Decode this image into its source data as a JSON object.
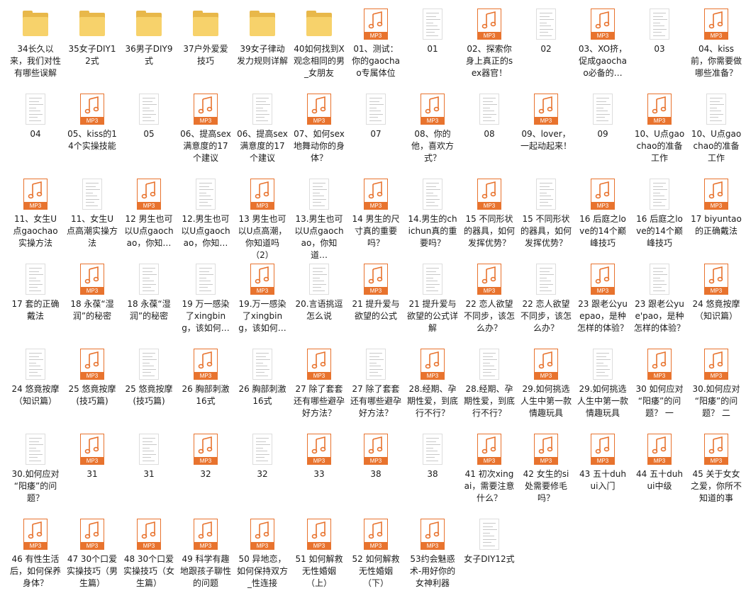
{
  "icon_label": "MP3",
  "items": [
    {
      "type": "folder",
      "label": "34长久以来，我们对性有哪些误解"
    },
    {
      "type": "folder",
      "label": "35女子DIY12式"
    },
    {
      "type": "folder",
      "label": "36男子DIY9式"
    },
    {
      "type": "folder",
      "label": "37户外爱爱技巧"
    },
    {
      "type": "folder",
      "label": "39女子律动发力规则详解"
    },
    {
      "type": "folder",
      "label": "40如何找到X观念相同的男_女朋友"
    },
    {
      "type": "mp3",
      "label": "01、测试：你的gaochao专属体位"
    },
    {
      "type": "doc",
      "label": "01"
    },
    {
      "type": "mp3",
      "label": "02、探索你身上真正的sex器官！"
    },
    {
      "type": "doc",
      "label": "02"
    },
    {
      "type": "mp3",
      "label": "03、XO挤，促成gaochao必备的…"
    },
    {
      "type": "doc",
      "label": "03"
    },
    {
      "type": "mp3",
      "label": "04、kiss前，你需要做哪些准备？"
    },
    {
      "type": "doc",
      "label": "04"
    },
    {
      "type": "mp3",
      "label": "05、kiss的14个实操技能"
    },
    {
      "type": "doc",
      "label": "05"
    },
    {
      "type": "mp3",
      "label": "06、提高sex满意度的17个建议"
    },
    {
      "type": "doc",
      "label": "06、提高sex满意度的17个建议"
    },
    {
      "type": "mp3",
      "label": "07、如何sex地舞动你的身体？"
    },
    {
      "type": "doc",
      "label": "07"
    },
    {
      "type": "mp3",
      "label": "08、你的他，喜欢方式？"
    },
    {
      "type": "doc",
      "label": "08"
    },
    {
      "type": "mp3",
      "label": "09、lover，一起动起来！"
    },
    {
      "type": "doc",
      "label": "09"
    },
    {
      "type": "mp3",
      "label": "10、U点gaochao的准备工作"
    },
    {
      "type": "doc",
      "label": "10、U点gaochao的准备工作"
    },
    {
      "type": "mp3",
      "label": "11、女生U点gaochao实操方法"
    },
    {
      "type": "doc",
      "label": "11、女生U点高潮实操方法"
    },
    {
      "type": "mp3",
      "label": "12 男生也可以U点gaochao，你知…"
    },
    {
      "type": "doc",
      "label": "12.男生也可以U点gaochao，你知…"
    },
    {
      "type": "mp3",
      "label": "13 男生也可以U点高潮，你知道吗（2）"
    },
    {
      "type": "doc",
      "label": "13.男生也可以U点gaochao，你知道…"
    },
    {
      "type": "mp3",
      "label": "14 男生的尺寸真的重要吗？"
    },
    {
      "type": "doc",
      "label": "14.男生的chichun真的重要吗？"
    },
    {
      "type": "mp3",
      "label": "15 不同形状的器具，如何发挥优势？"
    },
    {
      "type": "doc",
      "label": "15 不同形状的器具，如何发挥优势？"
    },
    {
      "type": "mp3",
      "label": "16 后庭之love的14个巅峰技巧"
    },
    {
      "type": "doc",
      "label": "16 后庭之love的14个巅峰技巧"
    },
    {
      "type": "mp3",
      "label": "17 biyuntao的正确戴法"
    },
    {
      "type": "doc",
      "label": "17 套的正确戴法"
    },
    {
      "type": "mp3",
      "label": "18 永葆“湿润”的秘密"
    },
    {
      "type": "doc",
      "label": "18 永葆“湿润”的秘密"
    },
    {
      "type": "doc",
      "label": "19 万一感染了xingbing，该如何…"
    },
    {
      "type": "mp3",
      "label": "19.万一感染了xingbing，该如何…"
    },
    {
      "type": "doc",
      "label": "20.言语挑逗怎么说"
    },
    {
      "type": "mp3",
      "label": "21 提升爱与欲望的公式"
    },
    {
      "type": "doc",
      "label": "21 提升爱与欲望的公式详解"
    },
    {
      "type": "mp3",
      "label": "22 恋人欲望不同步，该怎么办？"
    },
    {
      "type": "doc",
      "label": "22 恋人欲望不同步，该怎么办？"
    },
    {
      "type": "mp3",
      "label": "23 跟老公yuepao，是种怎样的体验？"
    },
    {
      "type": "doc",
      "label": "23 跟老公yue'pao，是种怎样的体验？"
    },
    {
      "type": "mp3",
      "label": "24 悠竟按摩（知识篇）"
    },
    {
      "type": "doc",
      "label": "24 悠竟按摩（知识篇）"
    },
    {
      "type": "mp3",
      "label": "25 悠竟按摩(技巧篇)"
    },
    {
      "type": "doc",
      "label": "25 悠竟按摩(技巧篇)"
    },
    {
      "type": "mp3",
      "label": "26 胸部刺激16式"
    },
    {
      "type": "doc",
      "label": "26 胸部刺激16式"
    },
    {
      "type": "mp3",
      "label": "27 除了套套 还有哪些避孕好方法？"
    },
    {
      "type": "doc",
      "label": "27 除了套套 还有哪些避孕好方法？"
    },
    {
      "type": "mp3",
      "label": "28.经期、孕期性爱，到底行不行？"
    },
    {
      "type": "doc",
      "label": "28.经期、孕期性爱，到底行不行？"
    },
    {
      "type": "mp3",
      "label": "29.如何挑选人生中第一款情趣玩具"
    },
    {
      "type": "doc",
      "label": "29.如何挑选人生中第一款情趣玩具"
    },
    {
      "type": "mp3",
      "label": "30 如何应对“阳痿”的问题？ 一"
    },
    {
      "type": "mp3",
      "label": "30.如何应对“阳痿”的问题？ 二"
    },
    {
      "type": "doc",
      "label": "30.如何应对“阳痿”的问题？"
    },
    {
      "type": "mp3",
      "label": "31"
    },
    {
      "type": "doc",
      "label": "31"
    },
    {
      "type": "mp3",
      "label": "32"
    },
    {
      "type": "doc",
      "label": "32"
    },
    {
      "type": "mp3",
      "label": "33"
    },
    {
      "type": "mp3",
      "label": "38"
    },
    {
      "type": "doc",
      "label": "38"
    },
    {
      "type": "mp3",
      "label": "41 初次xingai，需要注意什么？"
    },
    {
      "type": "mp3",
      "label": "42 女生的si处需要修毛吗？"
    },
    {
      "type": "mp3",
      "label": "43 五十duhui入门"
    },
    {
      "type": "mp3",
      "label": "44 五十duhui中级"
    },
    {
      "type": "mp3",
      "label": "45 关于女女之爱，你所不知道的事"
    },
    {
      "type": "mp3",
      "label": "46 有性生活后，如何保养身体？"
    },
    {
      "type": "mp3",
      "label": "47 30个口爱实操技巧（男生篇）"
    },
    {
      "type": "mp3",
      "label": "48 30个口爱实操技巧（女生篇）"
    },
    {
      "type": "mp3",
      "label": "49 科学有趣地跟孩子聊性的问题"
    },
    {
      "type": "mp3",
      "label": "50 异地恋，如何保持双方_性连接"
    },
    {
      "type": "mp3",
      "label": "51 如何解救无性婚姻（上）"
    },
    {
      "type": "mp3",
      "label": "52 如何解救无性婚姻（下）"
    },
    {
      "type": "mp3",
      "label": "53约会魅惑术-用好你的女神利器"
    },
    {
      "type": "doc",
      "label": "女子DIY12式"
    }
  ]
}
